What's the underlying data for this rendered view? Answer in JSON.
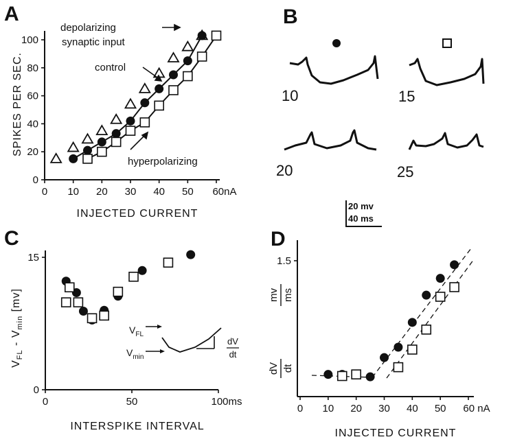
{
  "panels": {
    "A": "A",
    "B": "B",
    "C": "C",
    "D": "D"
  },
  "colors": {
    "ink": "#111111",
    "background": "#ffffff"
  },
  "chart_data": [
    {
      "panel": "A",
      "type": "line",
      "xlabel": "INJECTED CURRENT",
      "ylabel": "SPIKES PER SEC.",
      "xlim": [
        0,
        60
      ],
      "ylim": [
        0,
        100
      ],
      "x_ticks": [
        0,
        10,
        20,
        30,
        40,
        50,
        60
      ],
      "x_tick_labels": [
        "0",
        "10",
        "20",
        "30",
        "40",
        "50",
        "60nA"
      ],
      "y_ticks": [
        0,
        20,
        40,
        60,
        80,
        100
      ],
      "y_tick_labels": [
        "0",
        "20",
        "40",
        "60",
        "80",
        "100"
      ],
      "annotations": [
        "depolarizing",
        "synaptic input",
        "control",
        "hyperpolarizing"
      ],
      "series": [
        {
          "marker": "triangle",
          "x": [
            4,
            10,
            15,
            20,
            25,
            30,
            35,
            40,
            45,
            50,
            55
          ],
          "y": [
            15,
            23,
            29,
            35,
            43,
            54,
            65,
            76,
            87,
            95,
            103
          ]
        },
        {
          "marker": "filled-circle",
          "line": true,
          "x": [
            10,
            15,
            20,
            25,
            30,
            35,
            40,
            45,
            50,
            55
          ],
          "y": [
            15,
            21,
            27,
            33,
            42,
            55,
            65,
            75,
            85,
            103
          ]
        },
        {
          "marker": "open-square",
          "line": true,
          "x": [
            15,
            20,
            25,
            30,
            35,
            40,
            45,
            50,
            55,
            60
          ],
          "y": [
            15,
            20,
            27,
            35,
            41,
            53,
            64,
            74,
            88,
            103
          ]
        }
      ]
    },
    {
      "panel": "B",
      "type": "line",
      "markers": [
        "filled-circle",
        "open-square"
      ],
      "trace_labels": [
        "10",
        "15",
        "20",
        "25"
      ],
      "scale_bar": [
        "20 mv",
        "40 ms"
      ]
    },
    {
      "panel": "C",
      "type": "scatter",
      "xlabel": "INTERSPIKE INTERVAL",
      "ylabel": "V_FL - V_min [mv]",
      "xlim": [
        0,
        100
      ],
      "ylim": [
        0,
        15
      ],
      "x_tick_labels": [
        "0",
        "50",
        "100ms"
      ],
      "y_tick_labels": [
        "0",
        "15"
      ],
      "inset_labels": {
        "vfl_main": "V",
        "vfl_sub": "FL",
        "vmin_main": "V",
        "vmin_sub": "min",
        "dvdt_num": "dV",
        "dvdt_den": "dt"
      },
      "series": [
        {
          "marker": "filled-circle",
          "x": [
            12,
            18,
            22,
            27,
            34,
            42,
            56,
            84
          ],
          "y": [
            12.3,
            11.0,
            8.9,
            7.9,
            9.0,
            10.6,
            13.5,
            15.3
          ]
        },
        {
          "marker": "open-square",
          "x": [
            12,
            14,
            19,
            27,
            34,
            42,
            51,
            71
          ],
          "y": [
            9.9,
            11.6,
            9.9,
            8.1,
            8.4,
            11.1,
            12.8,
            14.4
          ]
        }
      ]
    },
    {
      "panel": "D",
      "type": "scatter",
      "xlabel": "INJECTED CURRENT",
      "ylabel_fraction": {
        "num": "mv",
        "den": "ms"
      },
      "y_left_fraction": {
        "num": "dV",
        "den": "dt"
      },
      "xlim": [
        0,
        60
      ],
      "x_tick_labels": [
        "0",
        "10",
        "20",
        "30",
        "40",
        "50",
        "60 nA"
      ],
      "y_tick_labels": [
        "1.5"
      ],
      "series": [
        {
          "marker": "filled-circle",
          "x": [
            10,
            15,
            25,
            30,
            35,
            40,
            45,
            50,
            55
          ],
          "y": [
            0.08,
            0.08,
            0.05,
            0.29,
            0.42,
            0.73,
            1.07,
            1.28,
            1.45
          ]
        },
        {
          "marker": "open-square",
          "x": [
            15,
            20,
            35,
            40,
            45,
            50,
            55
          ],
          "y": [
            0.06,
            0.08,
            0.17,
            0.39,
            0.64,
            1.05,
            1.17
          ]
        }
      ]
    }
  ]
}
